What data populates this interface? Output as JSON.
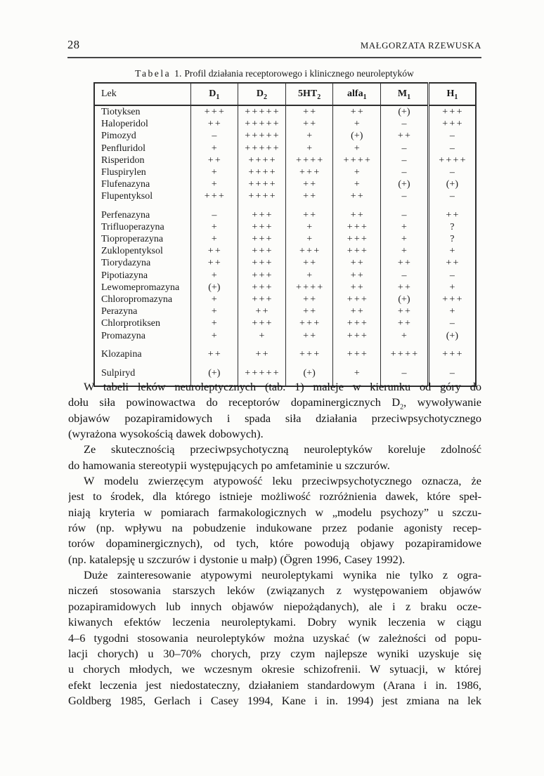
{
  "header": {
    "page_number": "28",
    "author": "MAŁGORZATA RZEWUSKA"
  },
  "caption": {
    "label": "Tabela",
    "number": "1.",
    "title": "Profil działania receptorowego i klinicznego neuroleptyków"
  },
  "table": {
    "columns": [
      "Lek",
      "D_1",
      "D_2",
      "5HT_2",
      "alfa_1",
      "M_1",
      "H_1"
    ],
    "groups": [
      [
        {
          "drug": "Tiotyksen",
          "values": [
            "+++",
            "+++++",
            "++",
            "++",
            "(+)",
            "+++"
          ]
        },
        {
          "drug": "Haloperidol",
          "values": [
            "++",
            "+++++",
            "++",
            "+",
            "–",
            "+++"
          ]
        },
        {
          "drug": "Pimozyd",
          "values": [
            "–",
            "+++++",
            "+",
            "(+)",
            "++",
            "–"
          ]
        },
        {
          "drug": "Penfluridol",
          "values": [
            "+",
            "+++++",
            "+",
            "+",
            "–",
            "–"
          ]
        },
        {
          "drug": "Risperidon",
          "values": [
            "++",
            "++++",
            "++++",
            "++++",
            "–",
            "++++"
          ]
        },
        {
          "drug": "Fluspirylen",
          "values": [
            "+",
            "++++",
            "+++",
            "+",
            "–",
            "–"
          ]
        },
        {
          "drug": "Flufenazyna",
          "values": [
            "+",
            "++++",
            "++",
            "+",
            "(+)",
            "(+)"
          ]
        },
        {
          "drug": "Flupentyksol",
          "values": [
            "+++",
            "++++",
            "++",
            "++",
            "–",
            "–"
          ]
        }
      ],
      [
        {
          "drug": "Perfenazyna",
          "values": [
            "–",
            "+++",
            "++",
            "++",
            "–",
            "++"
          ]
        },
        {
          "drug": "Trifluoperazyna",
          "values": [
            "+",
            "+++",
            "+",
            "+++",
            "+",
            "?"
          ]
        },
        {
          "drug": "Tioproperazyna",
          "values": [
            "+",
            "+++",
            "+",
            "+++",
            "+",
            "?"
          ]
        },
        {
          "drug": "Zuklopentyksol",
          "values": [
            "++",
            "+++",
            "+++",
            "+++",
            "+",
            "+"
          ]
        },
        {
          "drug": "Tiorydazyna",
          "values": [
            "++",
            "+++",
            "++",
            "++",
            "++",
            "++"
          ]
        },
        {
          "drug": "Pipotiazyna",
          "values": [
            "+",
            "+++",
            "+",
            "++",
            "–",
            "–"
          ]
        },
        {
          "drug": "Lewomepromazyna",
          "values": [
            "(+)",
            "+++",
            "++++",
            "++",
            "++",
            "+"
          ]
        },
        {
          "drug": "Chloropromazyna",
          "values": [
            "+",
            "+++",
            "++",
            "+++",
            "(+)",
            "+++"
          ]
        },
        {
          "drug": "Perazyna",
          "values": [
            "+",
            "++",
            "++",
            "++",
            "++",
            "+"
          ]
        },
        {
          "drug": "Chlorprotiksen",
          "values": [
            "+",
            "+++",
            "+++",
            "+++",
            "++",
            "–"
          ]
        },
        {
          "drug": "Promazyna",
          "values": [
            "+",
            "+",
            "++",
            "+++",
            "+",
            "(+)"
          ]
        }
      ],
      [
        {
          "drug": "Klozapina",
          "values": [
            "++",
            "++",
            "+++",
            "+++",
            "++++",
            "+++"
          ]
        }
      ],
      [
        {
          "drug": "Sulpiryd",
          "values": [
            "(+)",
            "+++++",
            "(+)",
            "+",
            "–",
            "–"
          ]
        }
      ]
    ]
  },
  "body": {
    "paragraphs": [
      {
        "justify_last": false,
        "lines": [
          "W tabeli leków neuroleptycznych (tab. 1) maleje w kierunku od góry do",
          "dołu siła powinowactwa do receptorów dopaminergicznych D_2, wywoływanie",
          "objawów pozapiramidowych i spada siła działania przeciwpsychotycznego",
          "(wyrażona wysokością dawek dobowych)."
        ]
      },
      {
        "justify_last": false,
        "lines": [
          "Ze skutecznością przeciwpsychotyczną neuroleptyków koreluje zdolność",
          "do hamowania stereotypii występujących po amfetaminie u szczurów."
        ]
      },
      {
        "justify_last": false,
        "lines": [
          "W modelu zwierzęcym atypowość leku przeciwpsychotycznego oznacza, że",
          "jest to środek, dla którego istnieje możliwość rozróżnienia dawek, które speł-",
          "niają kryteria w pomiarach farmakologicznych w „modelu psychozy” u szczu-",
          "rów (np. wpływu na pobudzenie indukowane przez podanie agonisty recep-",
          "torów dopaminergicznych), od tych, które powodują objawy pozapiramidowe",
          "(np. katalepsję u szczurów i dystonie u małp) (Ögren 1996, Casey 1992)."
        ]
      },
      {
        "justify_last": true,
        "lines": [
          "Duże zainteresowanie atypowymi neuroleptykami wynika nie tylko z ogra-",
          "niczeń stosowania starszych leków (związanych z występowaniem objawów",
          "pozapiramidowych lub innych objawów niepożądanych), ale i z braku ocze-",
          "kiwanych efektów leczenia neuroleptykami. Dobry wynik leczenia w ciągu",
          "4–6 tygodni stosowania neuroleptyków można uzyskać (w zależności od popu-",
          "lacji chorych) u 30–70% chorych, przy czym najlepsze wyniki uzyskuje się",
          "u chorych młodych, we wczesnym okresie schizofrenii. W sytuacji, w której",
          "efekt leczenia jest niedostateczny, działaniem standardowym (Arana i in. 1986,",
          "Goldberg 1985, Gerlach i Casey 1994, Kane i in. 1994) jest zmiana na lek"
        ]
      }
    ]
  },
  "colors": {
    "paper": "#fcfcfa",
    "ink": "#161616",
    "table_border": "#2e2e2e"
  }
}
